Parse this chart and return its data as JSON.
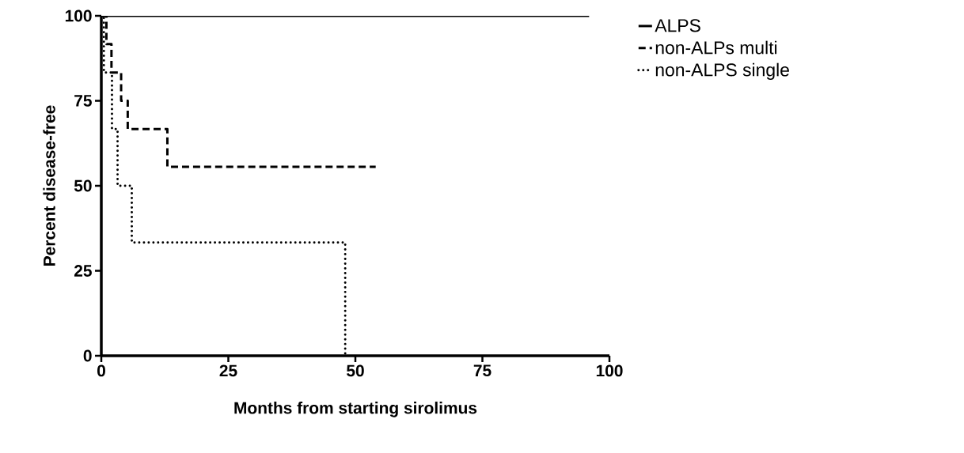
{
  "chart_data": {
    "type": "step",
    "xlabel": "Months from starting sirolimus",
    "ylabel": "Percent disease-free",
    "series": [
      {
        "name": "ALPS",
        "color": "#000000",
        "line_style": "solid",
        "x": [
          0,
          96
        ],
        "values": [
          100,
          100
        ]
      },
      {
        "name": "non-ALPs multi",
        "color": "#000000",
        "line_style": "dashed",
        "x": [
          0,
          1,
          2,
          3.9,
          5.2,
          13,
          54
        ],
        "values": [
          100,
          91.7,
          83.3,
          75,
          66.7,
          55.6,
          55.6
        ]
      },
      {
        "name": "non-ALPS single",
        "color": "#000000",
        "line_style": "dotted",
        "x": [
          0,
          0.5,
          2.1,
          3.2,
          6,
          48,
          48
        ],
        "values": [
          100,
          83.3,
          66.7,
          50,
          33.3,
          0,
          0
        ]
      }
    ],
    "xlim": [
      0,
      100
    ],
    "ylim": [
      0,
      100
    ],
    "xticks": [
      0,
      25,
      50,
      75,
      100
    ],
    "yticks": [
      0,
      25,
      50,
      75,
      100
    ],
    "grid": false,
    "legend": "right",
    "marker": "none"
  }
}
